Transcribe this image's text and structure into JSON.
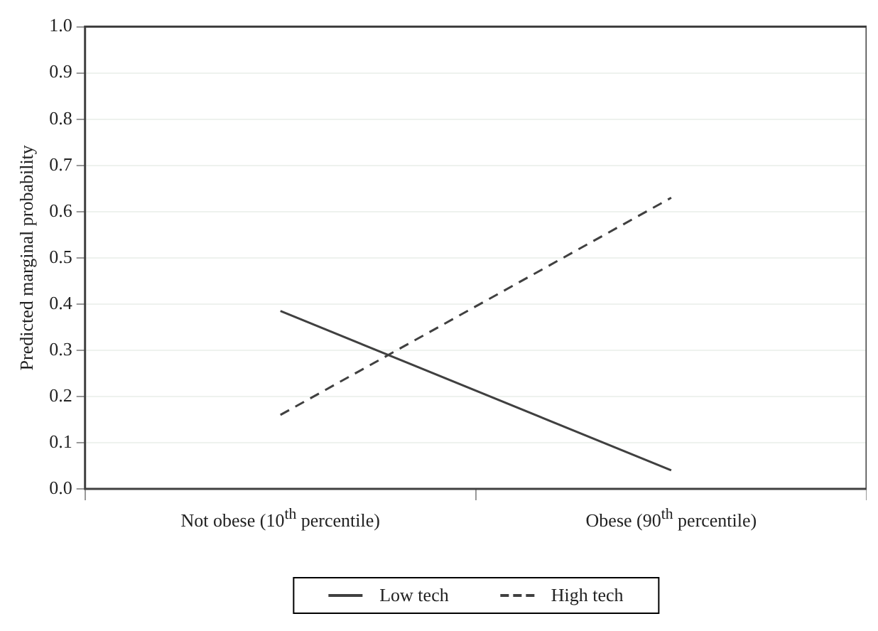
{
  "chart_data": {
    "type": "line",
    "ylabel": "Predicted marginal probability",
    "categories": [
      "Not obese (10$^{th}$ percentile)",
      "Obese (90$^{th}$ percentile)"
    ],
    "series": [
      {
        "name": "Low tech",
        "color": "#404040",
        "values": [
          0.385,
          0.04
        ],
        "line_style": "solid"
      },
      {
        "name": "High tech",
        "color": "#404040",
        "values": [
          0.16,
          0.63
        ],
        "line_style": "dashed"
      }
    ],
    "ylim": [
      0,
      1
    ],
    "yticks": [
      {
        "value": 0,
        "label": "0.0"
      },
      0.1,
      0.2,
      0.3,
      0.4,
      0.5,
      0.6,
      0.7,
      0.8,
      0.9,
      {
        "value": 1,
        "label": "1.0"
      }
    ],
    "grid": "y",
    "legend": "bottom",
    "marker": "none"
  }
}
